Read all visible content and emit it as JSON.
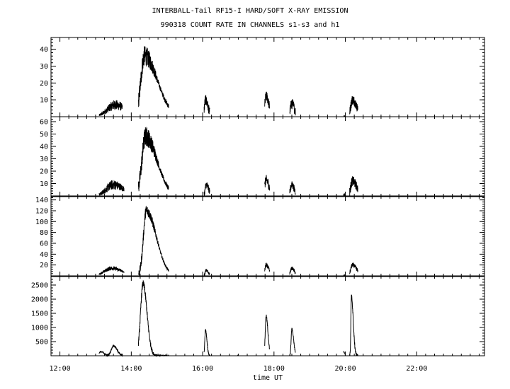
{
  "header": {
    "line1": "INTERBALL-Tail RF15-I HARD/SOFT X-RAY EMISSION",
    "line2": "990318  COUNT RATE IN CHANNELS s1-s3 and h1"
  },
  "chart_data": {
    "type": "line",
    "x_axis": {
      "label": "time UT",
      "range_hours": [
        11.75,
        23.9
      ],
      "ticks": [
        "12:00",
        "14:00",
        "16:00",
        "18:00",
        "20:00",
        "22:00"
      ],
      "tick_hours": [
        12,
        14,
        16,
        18,
        20,
        22
      ]
    },
    "panels": [
      {
        "channel": "s1",
        "ylim": [
          0,
          47
        ],
        "yticks": [
          10,
          20,
          30,
          40
        ],
        "background": 0,
        "events": [
          {
            "t": 13.55,
            "peak": 7,
            "rise": 0.22,
            "decay": 0.28,
            "noise": 3
          },
          {
            "t": 14.37,
            "peak": 36,
            "rise": 0.1,
            "decay": 0.36,
            "noise": 6
          },
          {
            "t": 16.08,
            "peak": 10,
            "rise": 0.03,
            "decay": 0.07,
            "noise": 3
          },
          {
            "t": 17.78,
            "peak": 12,
            "rise": 0.04,
            "decay": 0.08,
            "noise": 3
          },
          {
            "t": 18.5,
            "peak": 8,
            "rise": 0.04,
            "decay": 0.07,
            "noise": 3
          },
          {
            "t": 20.2,
            "peak": 10,
            "rise": 0.05,
            "decay": 0.12,
            "noise": 3
          }
        ],
        "segments": [
          [
            13.1,
            13.75
          ],
          [
            14.2,
            15.05
          ],
          [
            16.04,
            16.2
          ],
          [
            16.98,
            17.0
          ],
          [
            17.74,
            17.88
          ],
          [
            18.44,
            18.6
          ],
          [
            19.95,
            20.0
          ],
          [
            20.12,
            20.35
          ]
        ]
      },
      {
        "channel": "s2",
        "ylim": [
          0,
          64
        ],
        "yticks": [
          10,
          20,
          30,
          40,
          50,
          60
        ],
        "background": 0,
        "events": [
          {
            "t": 13.5,
            "peak": 9,
            "rise": 0.2,
            "decay": 0.3,
            "noise": 4
          },
          {
            "t": 14.4,
            "peak": 48,
            "rise": 0.1,
            "decay": 0.32,
            "noise": 8
          },
          {
            "t": 16.1,
            "peak": 9,
            "rise": 0.03,
            "decay": 0.07,
            "noise": 3
          },
          {
            "t": 17.78,
            "peak": 13,
            "rise": 0.04,
            "decay": 0.08,
            "noise": 4
          },
          {
            "t": 18.5,
            "peak": 9,
            "rise": 0.04,
            "decay": 0.07,
            "noise": 3
          },
          {
            "t": 20.2,
            "peak": 12,
            "rise": 0.05,
            "decay": 0.12,
            "noise": 4
          }
        ],
        "segments": [
          [
            13.1,
            13.8
          ],
          [
            14.2,
            15.05
          ],
          [
            16.04,
            16.2
          ],
          [
            16.98,
            17.0
          ],
          [
            17.74,
            17.88
          ],
          [
            18.44,
            18.6
          ],
          [
            19.95,
            20.0
          ],
          [
            20.12,
            20.35
          ]
        ]
      },
      {
        "channel": "s3",
        "ylim": [
          0,
          146
        ],
        "yticks": [
          20,
          40,
          60,
          80,
          100,
          120,
          140
        ],
        "background": 0,
        "events": [
          {
            "t": 13.45,
            "peak": 14,
            "rise": 0.2,
            "decay": 0.3,
            "noise": 4
          },
          {
            "t": 14.42,
            "peak": 120,
            "rise": 0.08,
            "decay": 0.28,
            "noise": 10
          },
          {
            "t": 16.1,
            "peak": 10,
            "rise": 0.03,
            "decay": 0.06,
            "noise": 3
          },
          {
            "t": 17.78,
            "peak": 20,
            "rise": 0.04,
            "decay": 0.08,
            "noise": 4
          },
          {
            "t": 18.5,
            "peak": 14,
            "rise": 0.04,
            "decay": 0.07,
            "noise": 3
          },
          {
            "t": 20.2,
            "peak": 20,
            "rise": 0.05,
            "decay": 0.12,
            "noise": 4
          }
        ],
        "segments": [
          [
            13.1,
            13.8
          ],
          [
            14.2,
            15.05
          ],
          [
            16.04,
            16.2
          ],
          [
            16.98,
            17.0
          ],
          [
            17.74,
            17.88
          ],
          [
            18.44,
            18.6
          ],
          [
            19.95,
            20.0
          ],
          [
            20.12,
            20.35
          ]
        ]
      },
      {
        "channel": "h1",
        "ylim": [
          0,
          2800
        ],
        "yticks": [
          500,
          1000,
          1500,
          2000,
          2500
        ],
        "background": 0,
        "events": [
          {
            "t": 13.15,
            "peak": 150,
            "rise": 0.05,
            "decay": 0.08,
            "noise": 20
          },
          {
            "t": 13.5,
            "peak": 350,
            "rise": 0.06,
            "decay": 0.1,
            "noise": 40
          },
          {
            "t": 14.33,
            "peak": 2550,
            "rise": 0.07,
            "decay": 0.11,
            "noise": 120
          },
          {
            "t": 16.08,
            "peak": 900,
            "rise": 0.02,
            "decay": 0.04,
            "noise": 40
          },
          {
            "t": 17.78,
            "peak": 1400,
            "rise": 0.025,
            "decay": 0.05,
            "noise": 60
          },
          {
            "t": 18.5,
            "peak": 950,
            "rise": 0.02,
            "decay": 0.05,
            "noise": 40
          },
          {
            "t": 19.95,
            "peak": 150,
            "rise": 0.02,
            "decay": 0.03,
            "noise": 20
          },
          {
            "t": 20.17,
            "peak": 2100,
            "rise": 0.015,
            "decay": 0.05,
            "noise": 80
          }
        ],
        "segments": [
          [
            13.1,
            13.75
          ],
          [
            14.2,
            15.05
          ],
          [
            16.04,
            16.2
          ],
          [
            16.98,
            17.0
          ],
          [
            17.74,
            17.88
          ],
          [
            18.44,
            18.6
          ],
          [
            19.95,
            20.0
          ],
          [
            20.12,
            20.35
          ]
        ]
      }
    ]
  }
}
